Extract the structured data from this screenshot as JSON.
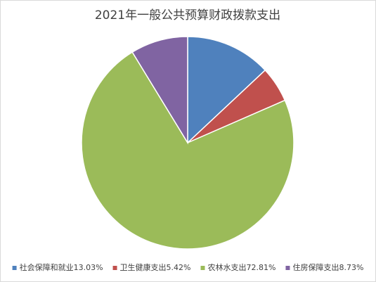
{
  "chart_data": {
    "type": "pie",
    "title": "2021年一般公共预算财政拨款支出",
    "categories": [
      "社会保障和就业",
      "卫生健康支出",
      "农林水支出",
      "住房保障支出"
    ],
    "values": [
      13.03,
      5.42,
      72.81,
      8.73
    ],
    "value_labels": [
      "13.03%",
      "5.42%",
      "72.81%",
      "8.73%"
    ],
    "colors": [
      "#4f81bd",
      "#c0504d",
      "#9bbb59",
      "#8064a2"
    ],
    "legend": "bottom"
  }
}
